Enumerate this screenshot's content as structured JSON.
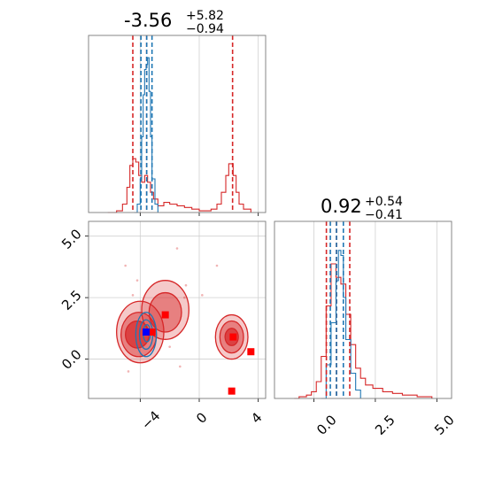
{
  "colors": {
    "posterior_a": "#d62728",
    "posterior_b": "#1f77b4",
    "grid": "#d0d0d0",
    "axes": "#7a7a7a",
    "marker_red": "#ff0000",
    "marker_blue": "#0000ff"
  },
  "chart_data": {
    "type": "corner",
    "parameters": [
      {
        "median": "-3.56",
        "plus": "+5.82",
        "minus": "−0.94",
        "range": [
          -7.5,
          4.5
        ],
        "ticks": [
          -4,
          0,
          4
        ],
        "tick_labels": [
          "−4",
          "0",
          "4"
        ]
      },
      {
        "median": "0.92",
        "plus": "+0.54",
        "minus": "−0.41",
        "range": [
          -1.6,
          5.6
        ],
        "ticks": [
          0,
          2.5,
          5
        ],
        "tick_labels": [
          "0.0",
          "2.5",
          "5.0"
        ]
      }
    ],
    "grid": true,
    "hist_1d_param1": {
      "x_range": [
        -7.5,
        4.5
      ],
      "red_quantiles": [
        -4.5,
        -3.56,
        2.26
      ],
      "blue_quantiles": [
        -3.95,
        -3.56,
        -3.2
      ],
      "red_points": [
        [
          -6.2,
          0
        ],
        [
          -5.6,
          0.01
        ],
        [
          -5.2,
          0.05
        ],
        [
          -4.9,
          0.15
        ],
        [
          -4.7,
          0.28
        ],
        [
          -4.5,
          0.32
        ],
        [
          -4.3,
          0.3
        ],
        [
          -4.1,
          0.22
        ],
        [
          -3.9,
          0.18
        ],
        [
          -3.7,
          0.22
        ],
        [
          -3.5,
          0.18
        ],
        [
          -3.3,
          0.12
        ],
        [
          -3.1,
          0.08
        ],
        [
          -2.8,
          0.04
        ],
        [
          -2.4,
          0.06
        ],
        [
          -2.0,
          0.05
        ],
        [
          -1.5,
          0.04
        ],
        [
          -1.0,
          0.03
        ],
        [
          -0.5,
          0.02
        ],
        [
          0.0,
          0.01
        ],
        [
          0.8,
          0.02
        ],
        [
          1.2,
          0.05
        ],
        [
          1.5,
          0.12
        ],
        [
          1.8,
          0.22
        ],
        [
          2.0,
          0.29
        ],
        [
          2.3,
          0.22
        ],
        [
          2.5,
          0.12
        ],
        [
          2.7,
          0.05
        ],
        [
          3.0,
          0.02
        ],
        [
          3.5,
          0
        ]
      ],
      "blue_points": [
        [
          -4.4,
          0
        ],
        [
          -4.2,
          0.05
        ],
        [
          -4.0,
          0.2
        ],
        [
          -3.9,
          0.45
        ],
        [
          -3.8,
          0.7
        ],
        [
          -3.7,
          0.85
        ],
        [
          -3.6,
          0.88
        ],
        [
          -3.5,
          0.92
        ],
        [
          -3.4,
          0.72
        ],
        [
          -3.3,
          0.45
        ],
        [
          -3.2,
          0.2
        ],
        [
          -3.0,
          0.05
        ],
        [
          -2.8,
          0
        ]
      ]
    },
    "hist_1d_param2": {
      "x_range": [
        -1.6,
        5.6
      ],
      "red_quantiles": [
        0.51,
        0.92,
        1.46
      ],
      "blue_quantiles": [
        0.67,
        0.92,
        1.2
      ],
      "red_points": [
        [
          -0.8,
          0
        ],
        [
          -0.6,
          0.01
        ],
        [
          -0.3,
          0.02
        ],
        [
          -0.1,
          0.04
        ],
        [
          0.1,
          0.1
        ],
        [
          0.3,
          0.25
        ],
        [
          0.5,
          0.55
        ],
        [
          0.7,
          0.8
        ],
        [
          0.9,
          0.72
        ],
        [
          1.1,
          0.68
        ],
        [
          1.3,
          0.5
        ],
        [
          1.5,
          0.32
        ],
        [
          1.7,
          0.18
        ],
        [
          1.9,
          0.12
        ],
        [
          2.1,
          0.08
        ],
        [
          2.4,
          0.06
        ],
        [
          2.8,
          0.04
        ],
        [
          3.2,
          0.03
        ],
        [
          3.6,
          0.02
        ],
        [
          4.2,
          0.01
        ],
        [
          4.8,
          0
        ]
      ],
      "blue_points": [
        [
          0.3,
          0
        ],
        [
          0.5,
          0.2
        ],
        [
          0.7,
          0.45
        ],
        [
          0.9,
          0.7
        ],
        [
          1.0,
          0.88
        ],
        [
          1.1,
          0.85
        ],
        [
          1.2,
          0.6
        ],
        [
          1.3,
          0.35
        ],
        [
          1.5,
          0.15
        ],
        [
          1.7,
          0.05
        ],
        [
          1.9,
          0
        ]
      ]
    },
    "scatter_2d": {
      "x_range": [
        -7.5,
        4.5
      ],
      "y_range": [
        -1.6,
        5.6
      ],
      "red_contours": [
        {
          "cx": -4.0,
          "cy": 1.1,
          "rx": 1.6,
          "ry": 1.25,
          "level": "outer"
        },
        {
          "cx": -4.1,
          "cy": 1.0,
          "rx": 1.2,
          "ry": 0.9,
          "level": "mid"
        },
        {
          "cx": -4.2,
          "cy": 1.0,
          "rx": 0.8,
          "ry": 0.55,
          "level": "inner"
        },
        {
          "cx": -2.3,
          "cy": 2.0,
          "rx": 1.6,
          "ry": 1.2,
          "level": "outer"
        },
        {
          "cx": -2.3,
          "cy": 1.9,
          "rx": 1.1,
          "ry": 0.8,
          "level": "mid"
        },
        {
          "cx": 2.2,
          "cy": 0.9,
          "rx": 1.1,
          "ry": 0.9,
          "level": "outer"
        },
        {
          "cx": 2.2,
          "cy": 0.9,
          "rx": 0.8,
          "ry": 0.65,
          "level": "mid"
        },
        {
          "cx": 2.2,
          "cy": 0.9,
          "rx": 0.45,
          "ry": 0.35,
          "level": "inner"
        }
      ],
      "blue_contours": [
        {
          "cx": -3.6,
          "cy": 1.0,
          "rx": 0.7,
          "ry": 0.9
        },
        {
          "cx": -3.6,
          "cy": 1.0,
          "rx": 0.45,
          "ry": 0.6
        },
        {
          "cx": -3.55,
          "cy": 1.05,
          "rx": 0.25,
          "ry": 0.35
        }
      ],
      "red_markers": [
        [
          -3.2,
          1.1
        ],
        [
          -2.3,
          1.8
        ],
        [
          2.3,
          0.9
        ],
        [
          3.5,
          0.3
        ],
        [
          2.2,
          -1.3
        ]
      ],
      "blue_markers": [
        [
          -3.6,
          1.1
        ]
      ],
      "outlier_points": [
        [
          -0.9,
          3.0
        ],
        [
          -4.2,
          3.2
        ],
        [
          -5.0,
          3.8
        ],
        [
          -4.5,
          2.6
        ],
        [
          -1.0,
          2.5
        ],
        [
          -2.0,
          0.5
        ],
        [
          -1.3,
          -0.3
        ],
        [
          -4.8,
          -0.5
        ],
        [
          0.2,
          2.6
        ],
        [
          -1.5,
          4.5
        ],
        [
          1.2,
          3.8
        ]
      ]
    }
  }
}
